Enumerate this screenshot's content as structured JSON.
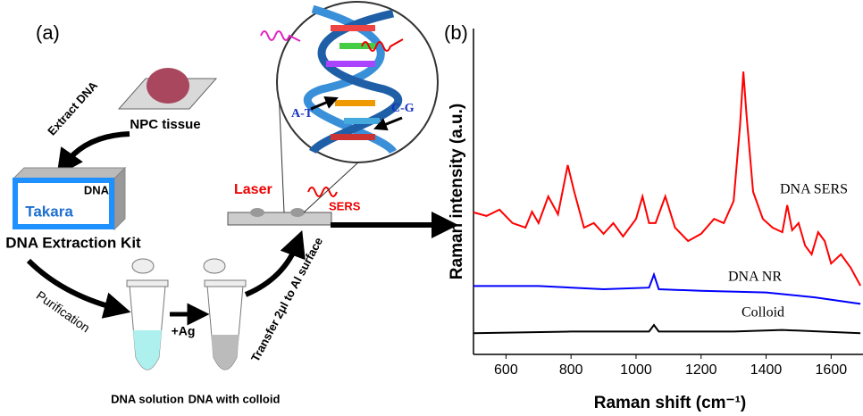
{
  "panel_a": {
    "label": "(a)",
    "extract": "Extract DNA",
    "tissue": "NPC tissue",
    "kit_dna": "DNA",
    "kit_brand": "Takara",
    "kit": "DNA Extraction Kit",
    "purification": "Purification",
    "ag": "+Ag",
    "tube1": "DNA solution",
    "tube2": "DNA with colloid",
    "transfer": "Transfer 2μl to Al surface",
    "laser": "Laser",
    "sers": "SERS",
    "at": "A-T",
    "cg": "C-G"
  },
  "chart_data": {
    "type": "line",
    "panel_label": "(b)",
    "x_label": "Raman shift (cm⁻¹)",
    "y_label": "Raman intensity (a.u.)",
    "xlim": [
      500,
      1698
    ],
    "xticks": [
      600,
      800,
      1000,
      1200,
      1400,
      1600
    ],
    "ylim": [
      0,
      100
    ],
    "series": [
      {
        "name": "DNA SERS",
        "color": "#ff0000",
        "x": [
          500,
          540,
          580,
          620,
          660,
          680,
          700,
          730,
          760,
          790,
          810,
          840,
          870,
          900,
          930,
          960,
          1000,
          1020,
          1040,
          1060,
          1090,
          1120,
          1160,
          1200,
          1240,
          1270,
          1300,
          1320,
          1330,
          1340,
          1360,
          1390,
          1420,
          1450,
          1465,
          1480,
          1500,
          1520,
          1540,
          1560,
          1580,
          1600,
          1630,
          1660,
          1690
        ],
        "values": [
          43.6,
          42.5,
          44.4,
          40.3,
          38.9,
          43.8,
          40.3,
          48.5,
          43,
          58.1,
          49.9,
          38.9,
          40.3,
          37,
          40.3,
          36.2,
          41.6,
          48.5,
          40.3,
          40.3,
          48.5,
          38.9,
          34.8,
          37,
          41.6,
          40.3,
          47.1,
          70.4,
          86.8,
          73.2,
          49.9,
          41.6,
          38.9,
          37.5,
          45.8,
          38.1,
          40.3,
          33.4,
          30.7,
          37.5,
          34.8,
          27.9,
          30.7,
          26.6,
          21.1
        ]
      },
      {
        "name": "DNA NR",
        "color": "#0000ff",
        "x": [
          500,
          700,
          900,
          1040,
          1055,
          1070,
          1200,
          1400,
          1550,
          1690
        ],
        "values": [
          21,
          21,
          20,
          20.5,
          24.5,
          20,
          19.5,
          19,
          17.5,
          15.5
        ]
      },
      {
        "name": "Colloid",
        "color": "#000000",
        "x": [
          500,
          800,
          1040,
          1055,
          1070,
          1300,
          1450,
          1690
        ],
        "values": [
          6.5,
          7,
          7,
          9,
          7,
          7,
          7.5,
          6.5
        ]
      }
    ]
  }
}
